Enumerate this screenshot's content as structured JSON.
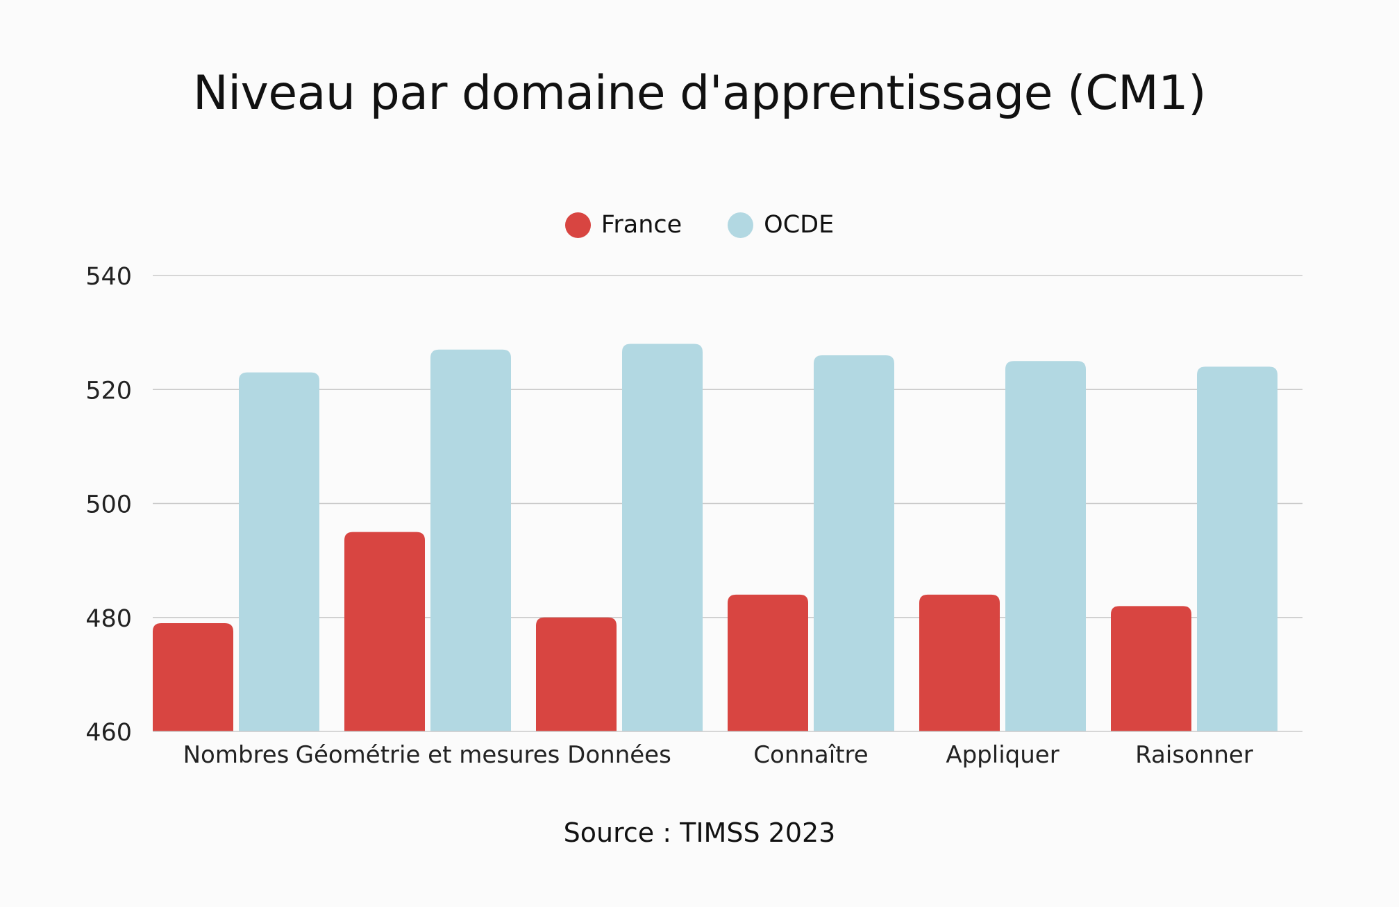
{
  "chart_data": {
    "type": "bar",
    "title": "Niveau par domaine d'apprentissage (CM1)",
    "categories": [
      "Nombres",
      "Géométrie et mesures",
      "Données",
      "Connaître",
      "Appliquer",
      "Raisonner"
    ],
    "series": [
      {
        "name": "France",
        "color": "#d84541",
        "values": [
          479,
          495,
          480,
          484,
          484,
          482
        ]
      },
      {
        "name": "OCDE",
        "color": "#b2d8e2",
        "values": [
          523,
          527,
          528,
          526,
          525,
          524
        ]
      }
    ],
    "xlabel": "",
    "ylabel": "",
    "ylim": [
      460,
      540
    ],
    "yticks": [
      "460",
      "480",
      "500",
      "520",
      "540"
    ],
    "grid": true,
    "legend_position": "top-center",
    "source": "Source : TIMSS 2023"
  }
}
